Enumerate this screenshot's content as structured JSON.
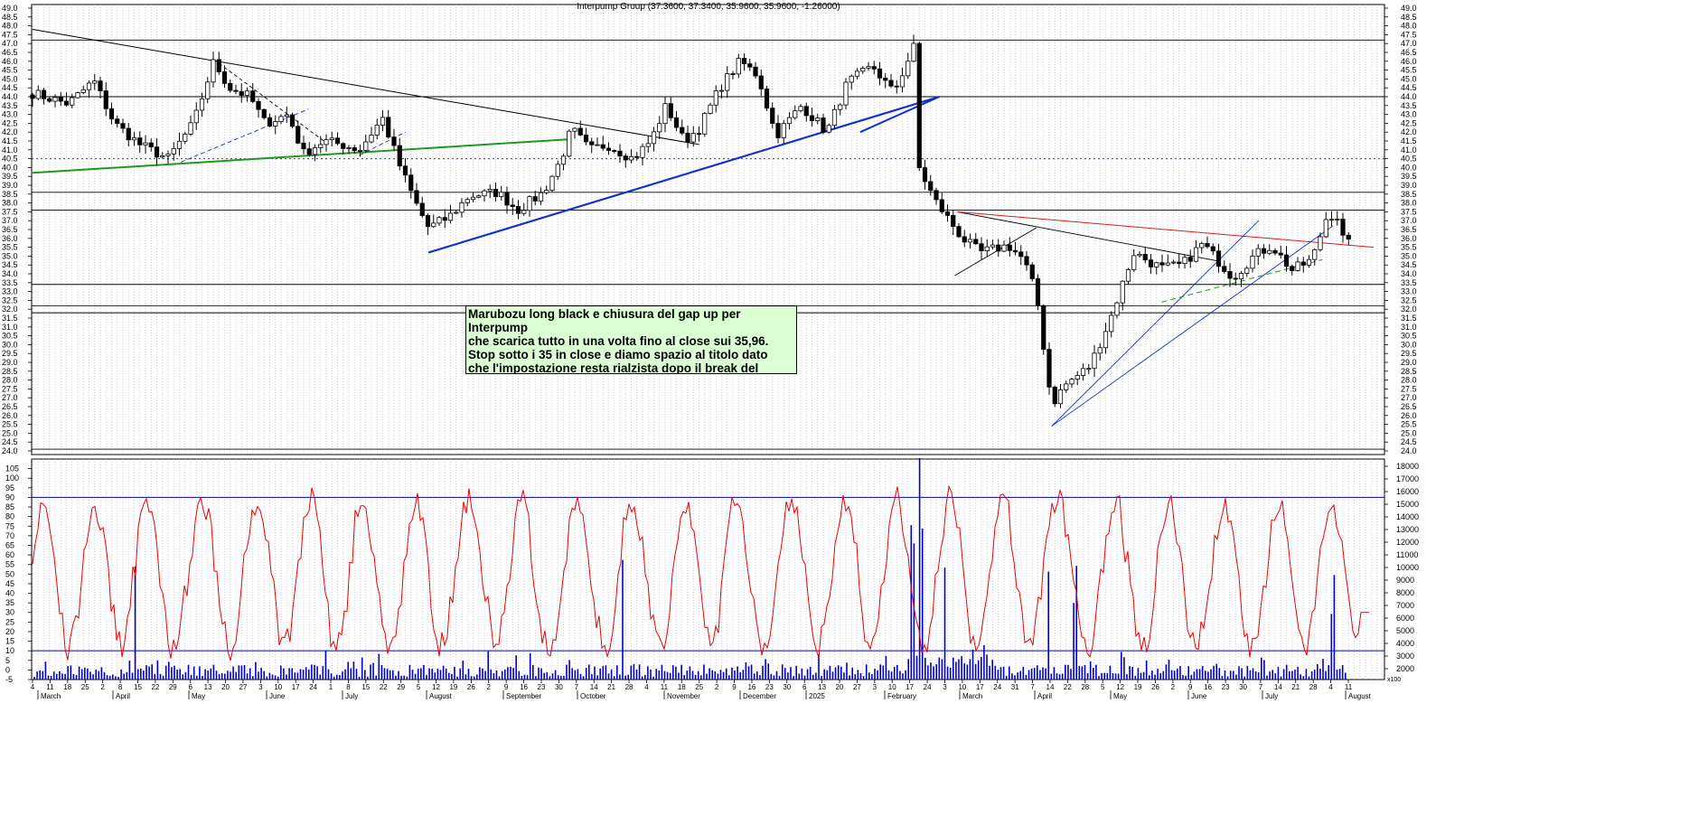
{
  "chart_data": [
    {
      "type": "candlestick",
      "title": "Interpump Group (37.3600, 37.3400, 35.9600, 35.9600, -1.26000)",
      "ylim": [
        24,
        49
      ],
      "y_ticks": [
        24.0,
        24.5,
        25.0,
        25.5,
        26.0,
        26.5,
        27.0,
        27.5,
        28.0,
        28.5,
        29.0,
        29.5,
        30.0,
        30.5,
        31.0,
        31.5,
        32.0,
        32.5,
        33.0,
        33.5,
        34.0,
        34.5,
        35.0,
        35.5,
        36.0,
        36.5,
        37.0,
        37.5,
        38.0,
        38.5,
        39.0,
        39.5,
        40.0,
        40.5,
        41.0,
        41.5,
        42.0,
        42.5,
        43.0,
        43.5,
        44.0,
        44.5,
        45.0,
        45.5,
        46.0,
        46.5,
        47.0,
        47.5,
        48.0,
        48.5,
        49.0
      ],
      "grid": true,
      "last_bar": {
        "open": 37.36,
        "high": 37.34,
        "low": 35.96,
        "close": 35.96,
        "change": -1.26
      },
      "close_path": [
        [
          "2024-03-04",
          44.2
        ],
        [
          "2024-03-18",
          43.6
        ],
        [
          "2024-03-28",
          44.9
        ],
        [
          "2024-04-05",
          42.5
        ],
        [
          "2024-04-15",
          41.3
        ],
        [
          "2024-04-26",
          40.5
        ],
        [
          "2024-05-06",
          42.5
        ],
        [
          "2024-05-14",
          46.0
        ],
        [
          "2024-05-20",
          44.5
        ],
        [
          "2024-05-28",
          44.0
        ],
        [
          "2024-06-03",
          42.5
        ],
        [
          "2024-06-12",
          43.0
        ],
        [
          "2024-06-18",
          40.8
        ],
        [
          "2024-06-26",
          41.5
        ],
        [
          "2024-07-03",
          41.3
        ],
        [
          "2024-07-10",
          41.0
        ],
        [
          "2024-07-19",
          42.8
        ],
        [
          "2024-07-26",
          40.0
        ],
        [
          "2024-08-01",
          38.0
        ],
        [
          "2024-08-06",
          36.6
        ],
        [
          "2024-08-14",
          37.2
        ],
        [
          "2024-08-22",
          38.4
        ],
        [
          "2024-09-02",
          38.6
        ],
        [
          "2024-09-10",
          37.6
        ],
        [
          "2024-09-20",
          38.6
        ],
        [
          "2024-09-27",
          40.5
        ],
        [
          "2024-10-01",
          42.2
        ],
        [
          "2024-10-08",
          41.0
        ],
        [
          "2024-10-15",
          41.3
        ],
        [
          "2024-10-25",
          40.5
        ],
        [
          "2024-11-01",
          41.5
        ],
        [
          "2024-11-07",
          43.5
        ],
        [
          "2024-11-14",
          41.5
        ],
        [
          "2024-11-20",
          42.2
        ],
        [
          "2024-11-28",
          44.5
        ],
        [
          "2024-12-06",
          46.0
        ],
        [
          "2024-12-13",
          45.2
        ],
        [
          "2024-12-20",
          41.8
        ],
        [
          "2024-12-30",
          43.5
        ],
        [
          "2025-01-09",
          42.0
        ],
        [
          "2025-01-17",
          44.8
        ],
        [
          "2025-01-27",
          45.7
        ],
        [
          "2025-02-04",
          44.2
        ],
        [
          "2025-02-12",
          46.8
        ],
        [
          "2025-02-14",
          40.0
        ],
        [
          "2025-02-20",
          38.2
        ],
        [
          "2025-03-03",
          36.0
        ],
        [
          "2025-03-10",
          35.2
        ],
        [
          "2025-03-21",
          35.6
        ],
        [
          "2025-03-27",
          34.8
        ],
        [
          "2025-04-01",
          32.8
        ],
        [
          "2025-04-07",
          26.6
        ],
        [
          "2025-04-12",
          27.7
        ],
        [
          "2025-04-22",
          28.8
        ],
        [
          "2025-04-30",
          31.5
        ],
        [
          "2025-05-09",
          35.2
        ],
        [
          "2025-05-20",
          34.3
        ],
        [
          "2025-05-28",
          34.5
        ],
        [
          "2025-06-05",
          35.7
        ],
        [
          "2025-06-17",
          33.8
        ],
        [
          "2025-06-25",
          35.0
        ],
        [
          "2025-07-02",
          35.6
        ],
        [
          "2025-07-10",
          34.2
        ],
        [
          "2025-07-18",
          34.8
        ],
        [
          "2025-07-24",
          37.4
        ],
        [
          "2025-07-29",
          37.2
        ],
        [
          "2025-07-30",
          35.96
        ]
      ],
      "horizontal_lines": [
        47.2,
        44.0,
        40.5,
        38.6,
        37.6,
        33.4,
        32.2,
        31.8,
        24.1
      ],
      "annotation": "Marubozu long black e chiusura del gap up per Interpump\nche scarica tutto in una volta fino al close sui 35,96.\nStop sotto i 35 in close e diamo spazio al titolo dato\nche l'impostazione resta rialzista dopo il break del\ntesta e spalla."
    },
    {
      "type": "bar+line",
      "left_ylim": [
        -5,
        110
      ],
      "left_ticks": [
        -5,
        0,
        5,
        10,
        15,
        20,
        25,
        30,
        35,
        40,
        45,
        50,
        55,
        60,
        65,
        70,
        75,
        80,
        85,
        90,
        95,
        100,
        105
      ],
      "right_ticks": [
        2000,
        3000,
        4000,
        5000,
        6000,
        7000,
        8000,
        9000,
        10000,
        11000,
        12000,
        13000,
        14000,
        15000,
        16000,
        17000,
        18000
      ],
      "right_unit": "x100",
      "levels": [
        90,
        10
      ],
      "oscillator_color": "#ee0000",
      "volume_color": "#0000cc"
    }
  ],
  "x_axis": {
    "day_ticks": [
      "4",
      "11",
      "18",
      "25",
      "2",
      "8",
      "15",
      "22",
      "29",
      "6",
      "13",
      "20",
      "27",
      "3",
      "10",
      "17",
      "24",
      "1",
      "8",
      "15",
      "22",
      "29",
      "5",
      "12",
      "19",
      "26",
      "2",
      "9",
      "16",
      "23",
      "30",
      "7",
      "14",
      "21",
      "28",
      "4",
      "11",
      "18",
      "25",
      "2",
      "9",
      "16",
      "23",
      "30",
      "6",
      "13",
      "20",
      "27",
      "3",
      "10",
      "17",
      "24",
      "3",
      "10",
      "17",
      "24",
      "31",
      "7",
      "14",
      "22",
      "28",
      "5",
      "12",
      "19",
      "26",
      "2",
      "9",
      "16",
      "23",
      "30",
      "7",
      "14",
      "21",
      "28",
      "4",
      "11"
    ],
    "month_ticks": [
      "March",
      "April",
      "May",
      "June",
      "July",
      "August",
      "September",
      "October",
      "November",
      "December",
      "2025",
      "February",
      "March",
      "April",
      "May",
      "June",
      "July",
      "August"
    ]
  }
}
